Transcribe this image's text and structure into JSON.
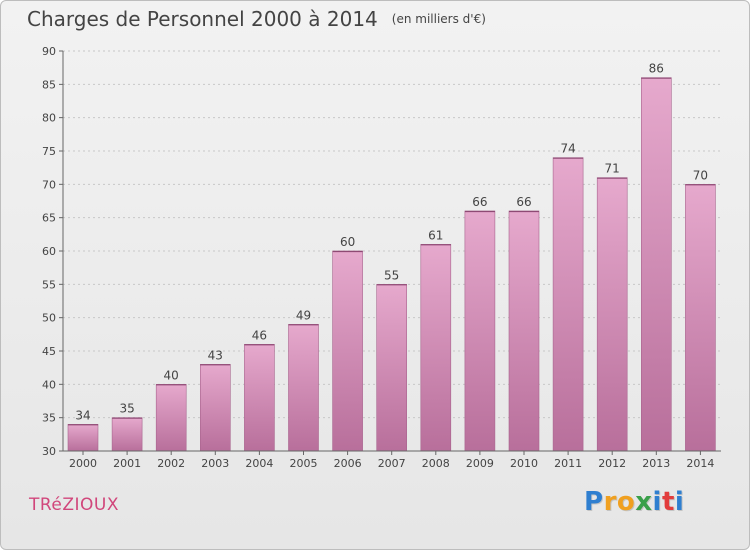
{
  "chart_data": {
    "type": "bar",
    "title": "Charges de Personnel 2000 à 2014",
    "subtitle": "(en milliers d'€)",
    "categories": [
      "2000",
      "2001",
      "2002",
      "2003",
      "2004",
      "2005",
      "2006",
      "2007",
      "2008",
      "2009",
      "2010",
      "2011",
      "2012",
      "2013",
      "2014"
    ],
    "values": [
      34,
      35,
      40,
      43,
      46,
      49,
      60,
      55,
      61,
      66,
      66,
      74,
      71,
      86,
      70
    ],
    "ylim": [
      30,
      90
    ],
    "yticks": [
      30,
      35,
      40,
      45,
      50,
      55,
      60,
      65,
      70,
      75,
      80,
      85,
      90
    ],
    "grid": true,
    "data_labels": true,
    "bar_color": "#d38fb7"
  },
  "footer": {
    "commune": "TRéZIOUX",
    "logo_letters": [
      "P",
      "r",
      "o",
      "x",
      "i",
      "t",
      "i"
    ],
    "logo_colors": [
      "#2f7fd0",
      "#f0a020",
      "#f0a020",
      "#3aa04a",
      "#2f7fd0",
      "#e23d3d",
      "#2f7fd0"
    ]
  }
}
